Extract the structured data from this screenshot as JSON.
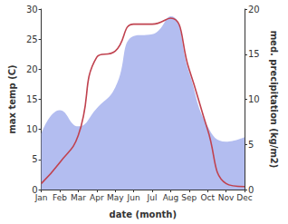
{
  "chart_data": {
    "type": "line",
    "categories": [
      "Jan",
      "Feb",
      "Mar",
      "Apr",
      "May",
      "Jun",
      "Jul",
      "Aug",
      "Sep",
      "Oct",
      "Nov",
      "Dec"
    ],
    "x_label": "date (month)",
    "y_label": "max temp (C)",
    "y2_label": "med. precipitation (kg/m2)",
    "ylim": [
      0,
      30
    ],
    "yticks": [
      0,
      5,
      10,
      15,
      20,
      25,
      30
    ],
    "y2lim": [
      0,
      20
    ],
    "y2ticks": [
      0,
      5,
      10,
      15,
      20
    ],
    "grid": false,
    "series": [
      {
        "type": "area",
        "axis": "y2",
        "color": "#b3bdf0",
        "values": [
          6.2,
          8.8,
          7,
          9,
          11.3,
          17,
          17.2,
          19.2,
          13,
          7,
          5.3,
          5.8
        ]
      },
      {
        "type": "line",
        "axis": "y",
        "color": "#c0424f",
        "values": [
          1,
          4.5,
          9,
          22,
          23,
          27.5,
          27.5,
          28.5,
          20,
          10,
          1,
          0.5
        ]
      }
    ]
  }
}
